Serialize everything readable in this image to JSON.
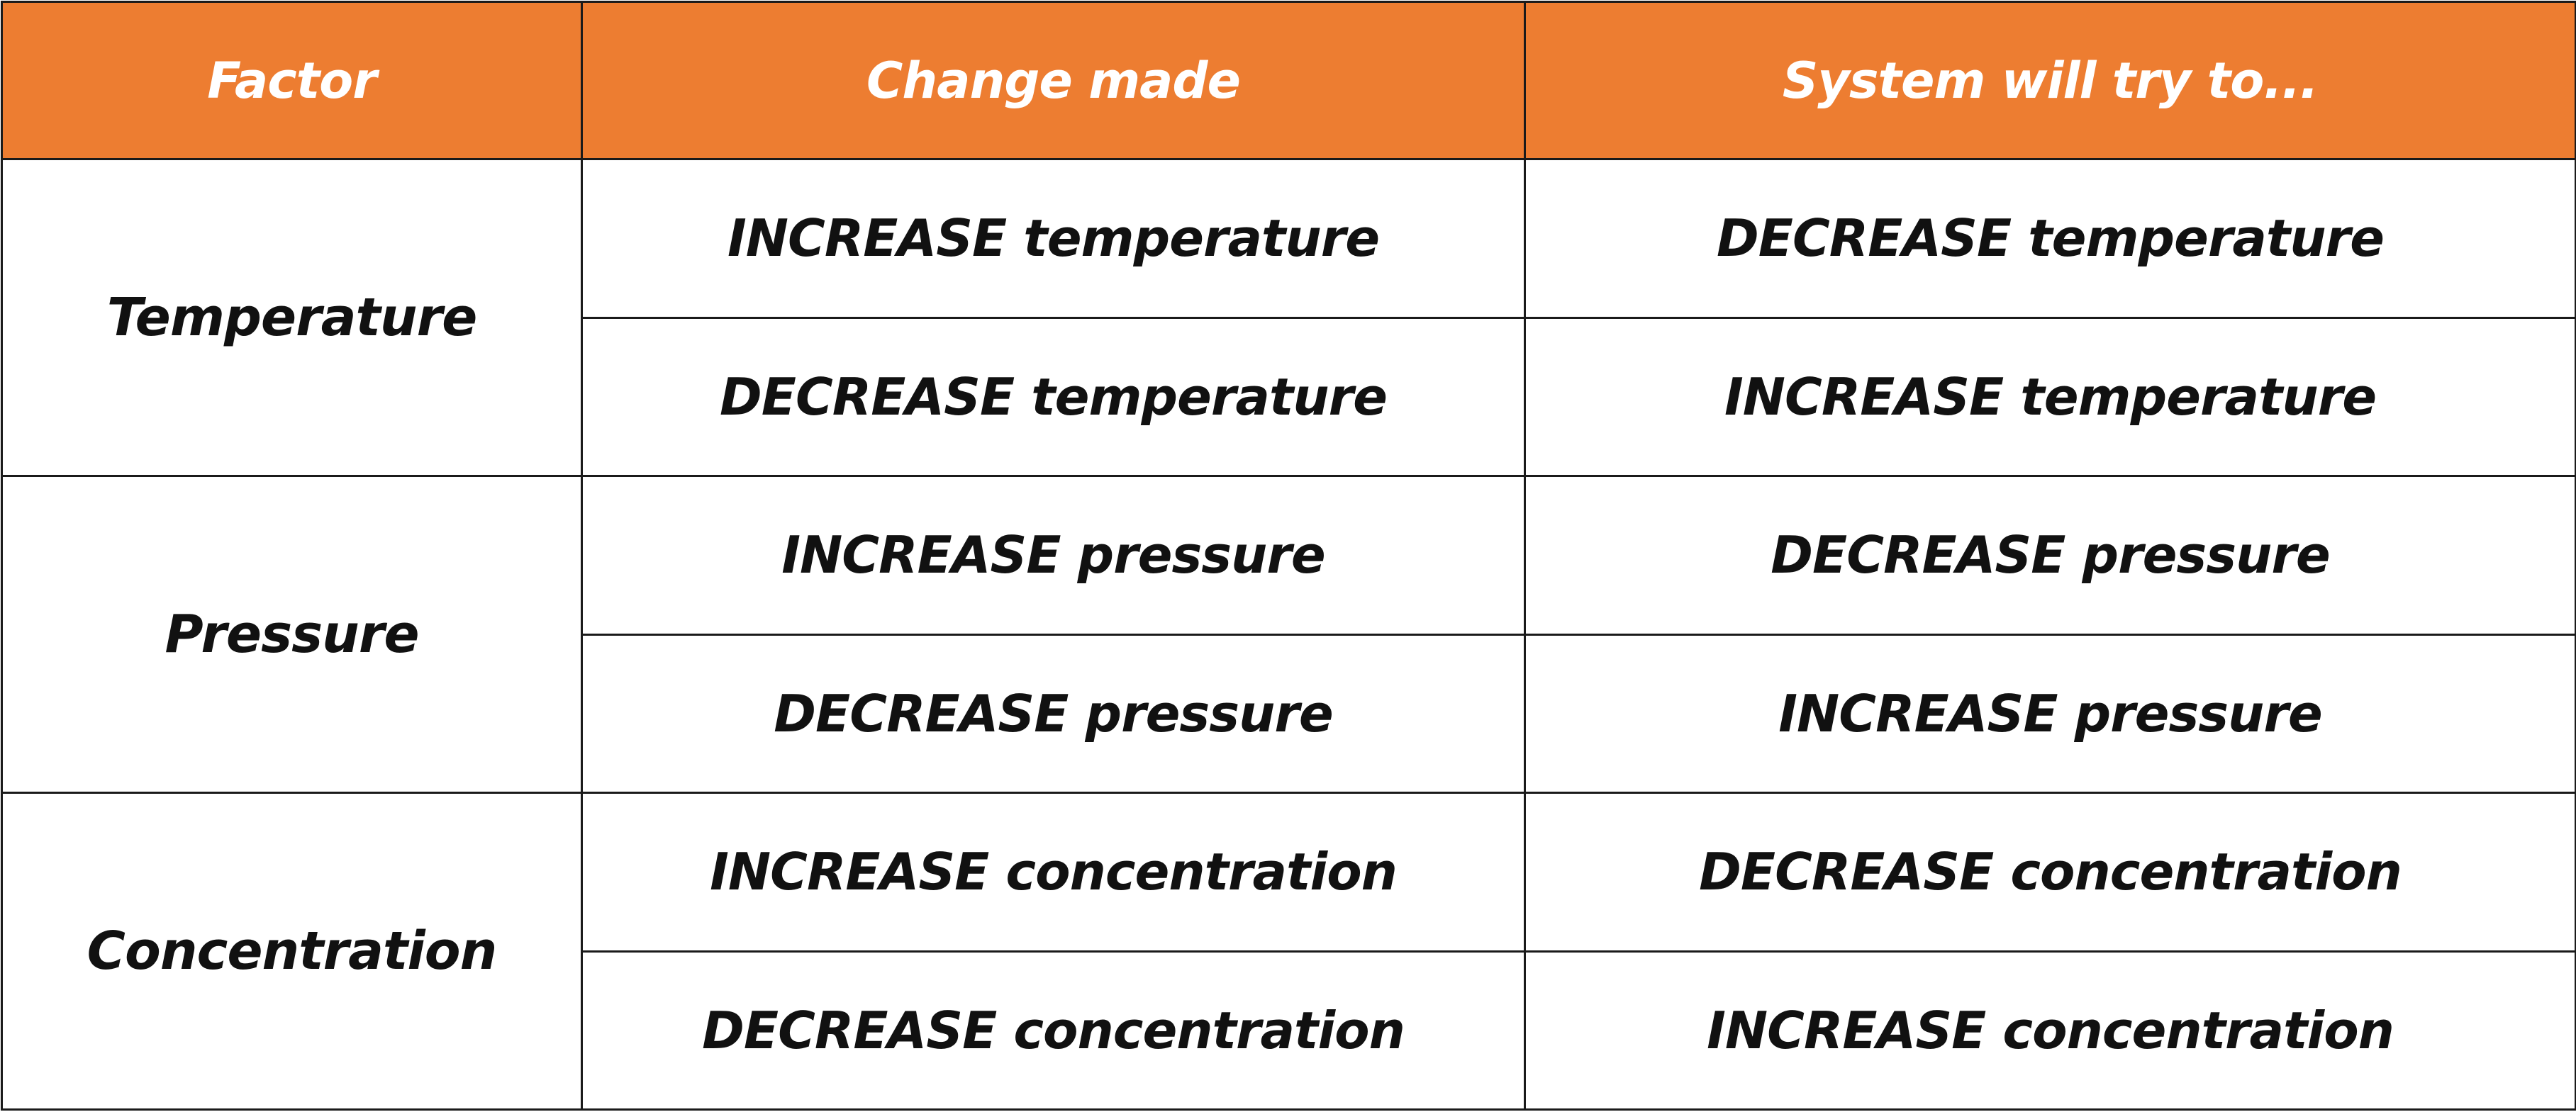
{
  "table": {
    "headers": [
      "Factor",
      "Change made",
      "System will try to..."
    ],
    "groups": [
      {
        "factor": "Temperature",
        "rows": [
          {
            "change": "INCREASE temperature",
            "response": "DECREASE temperature"
          },
          {
            "change": "DECREASE temperature",
            "response": "INCREASE temperature"
          }
        ]
      },
      {
        "factor": "Pressure",
        "rows": [
          {
            "change": "INCREASE pressure",
            "response": "DECREASE pressure"
          },
          {
            "change": "DECREASE pressure",
            "response": "INCREASE pressure"
          }
        ]
      },
      {
        "factor": "Concentration",
        "rows": [
          {
            "change": "INCREASE concentration",
            "response": "DECREASE concentration"
          },
          {
            "change": "DECREASE concentration",
            "response": "INCREASE concentration"
          }
        ]
      }
    ]
  },
  "colors": {
    "header_background": "#ED7D31",
    "header_text": "#ffffff",
    "border": "#1a1a1a",
    "body_text": "#111111"
  }
}
